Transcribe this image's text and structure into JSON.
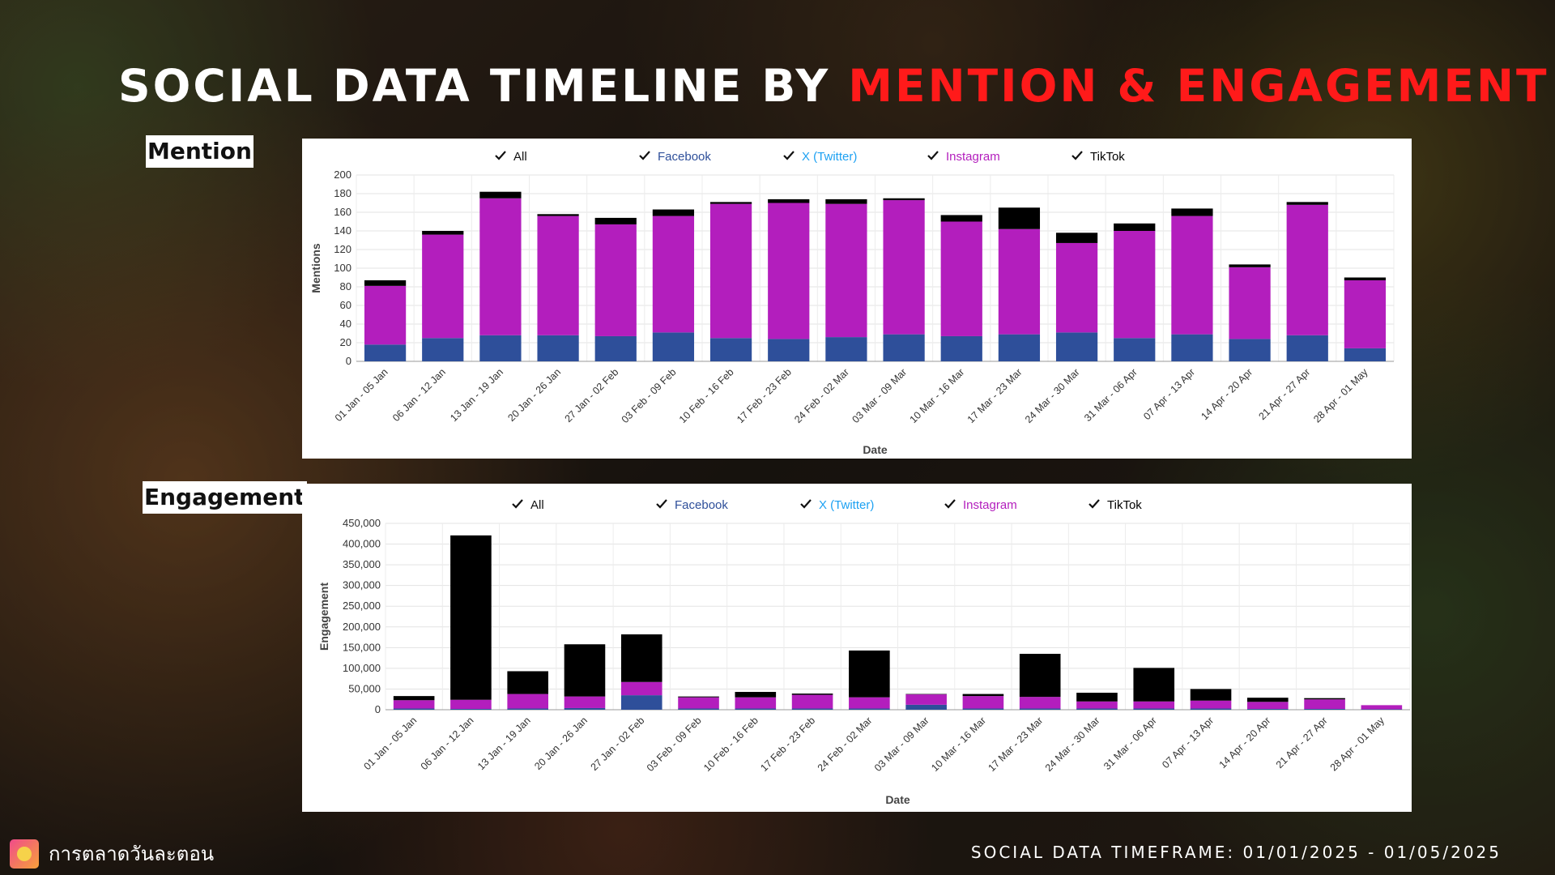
{
  "title": {
    "part1": "SOCIAL DATA TIMELINE BY ",
    "part2": "MENTION & ENGAGEMENT"
  },
  "colors": {
    "title_highlight": "#ff1a1a",
    "facebook": "#2e4f9a",
    "twitter": "#1da1f2",
    "instagram": "#b31ebd",
    "tiktok": "#000000"
  },
  "footer": {
    "brand": "การตลาดวันละตอน",
    "brand_icon": "brand-logo-icon",
    "timeframe": "SOCIAL DATA TIMEFRAME: 01/01/2025 - 01/05/2025"
  },
  "legend": [
    "All",
    "Facebook",
    "X (Twitter)",
    "Instagram",
    "TikTok"
  ],
  "chart_data": [
    {
      "id": "mention",
      "section_label": "Mention",
      "type": "bar",
      "stacked": true,
      "grid": true,
      "legend_position": "top",
      "xlabel": "Date",
      "ylabel": "Mentions",
      "ylim": [
        0,
        200
      ],
      "yticks": [
        0,
        20,
        40,
        60,
        80,
        100,
        120,
        140,
        160,
        180,
        200
      ],
      "categories": [
        "01 Jan - 05 Jan",
        "06 Jan - 12 Jan",
        "13 Jan - 19 Jan",
        "20 Jan - 26 Jan",
        "27 Jan - 02 Feb",
        "03 Feb - 09 Feb",
        "10 Feb - 16 Feb",
        "17 Feb - 23 Feb",
        "24 Feb - 02 Mar",
        "03 Mar - 09 Mar",
        "10 Mar - 16 Mar",
        "17 Mar - 23 Mar",
        "24 Mar - 30 Mar",
        "31 Mar - 06 Apr",
        "07 Apr - 13 Apr",
        "14 Apr - 20 Apr",
        "21 Apr - 27 Apr",
        "28 Apr - 01 May"
      ],
      "series": [
        {
          "name": "Facebook",
          "values": [
            18,
            25,
            28,
            28,
            27,
            31,
            25,
            24,
            26,
            29,
            27,
            29,
            31,
            25,
            29,
            24,
            28,
            14
          ]
        },
        {
          "name": "X (Twitter)",
          "values": [
            0,
            0,
            0,
            0,
            0,
            0,
            0,
            0,
            0,
            0,
            0,
            0,
            0,
            0,
            0,
            0,
            0,
            0
          ]
        },
        {
          "name": "Instagram",
          "values": [
            63,
            111,
            147,
            128,
            120,
            125,
            144,
            146,
            143,
            144,
            123,
            113,
            96,
            115,
            127,
            77,
            140,
            73
          ]
        },
        {
          "name": "TikTok",
          "values": [
            6,
            4,
            7,
            2,
            7,
            7,
            2,
            4,
            5,
            2,
            7,
            23,
            11,
            8,
            8,
            3,
            3,
            3
          ]
        }
      ]
    },
    {
      "id": "engagement",
      "section_label": "Engagement",
      "type": "bar",
      "stacked": true,
      "grid": true,
      "legend_position": "top",
      "xlabel": "Date",
      "ylabel": "Engagement",
      "ylim": [
        0,
        450000
      ],
      "yticks": [
        0,
        50000,
        100000,
        150000,
        200000,
        250000,
        300000,
        350000,
        400000,
        450000
      ],
      "ytick_labels": [
        "0",
        "50,000",
        "100,000",
        "150,000",
        "200,000",
        "250,000",
        "300,000",
        "350,000",
        "400,000",
        "450,000"
      ],
      "categories": [
        "01 Jan - 05 Jan",
        "06 Jan - 12 Jan",
        "13 Jan - 19 Jan",
        "20 Jan - 26 Jan",
        "27 Jan - 02 Feb",
        "03 Feb - 09 Feb",
        "10 Feb - 16 Feb",
        "17 Feb - 23 Feb",
        "24 Feb - 02 Mar",
        "03 Mar - 09 Mar",
        "10 Mar - 16 Mar",
        "17 Mar - 23 Mar",
        "24 Mar - 30 Mar",
        "31 Mar - 06 Apr",
        "07 Apr - 13 Apr",
        "14 Apr - 20 Apr",
        "21 Apr - 27 Apr",
        "28 Apr - 01 May"
      ],
      "series": [
        {
          "name": "Facebook",
          "values": [
            3000,
            2000,
            3000,
            4000,
            35000,
            3000,
            3000,
            3000,
            3000,
            12000,
            3000,
            3000,
            3000,
            3000,
            3000,
            2000,
            2000,
            1000
          ]
        },
        {
          "name": "X (Twitter)",
          "values": [
            0,
            0,
            0,
            0,
            0,
            0,
            0,
            0,
            0,
            0,
            0,
            0,
            0,
            0,
            0,
            0,
            0,
            0
          ]
        },
        {
          "name": "Instagram",
          "values": [
            20000,
            22000,
            35000,
            28000,
            32000,
            27000,
            27000,
            33000,
            27000,
            25000,
            30000,
            28000,
            17000,
            17000,
            19000,
            17000,
            23000,
            10000
          ]
        },
        {
          "name": "TikTok",
          "values": [
            10000,
            397000,
            55000,
            126000,
            115000,
            2000,
            13000,
            3000,
            113000,
            1000,
            5000,
            104000,
            21000,
            81000,
            28000,
            10000,
            3000,
            0
          ]
        }
      ]
    }
  ]
}
